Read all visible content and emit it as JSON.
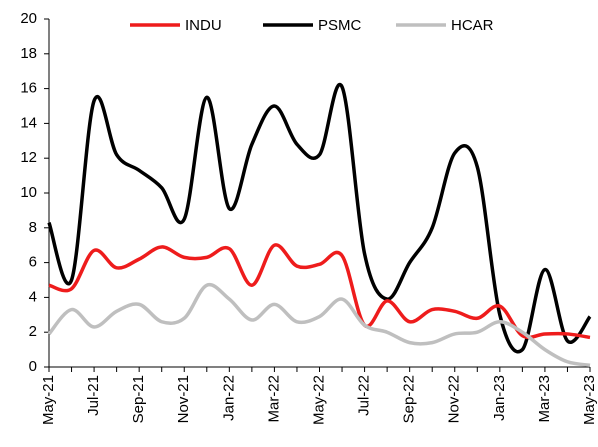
{
  "chart_data": {
    "type": "line",
    "categories": [
      "May-21",
      null,
      "Jul-21",
      null,
      "Sep-21",
      null,
      "Nov-21",
      null,
      "Jan-22",
      null,
      "Mar-22",
      null,
      "May-22",
      null,
      "Jul-22",
      null,
      "Sep-22",
      null,
      "Nov-22",
      null,
      "Jan-23",
      null,
      "Mar-23",
      null,
      "May-23"
    ],
    "series": [
      {
        "name": "INDU",
        "color": "#ee1c1c",
        "values": [
          4.7,
          4.5,
          6.7,
          5.7,
          6.2,
          6.9,
          6.3,
          6.3,
          6.8,
          4.7,
          7.0,
          5.8,
          5.9,
          6.4,
          2.4,
          3.8,
          2.6,
          3.3,
          3.2,
          2.8,
          3.5,
          1.8,
          1.9,
          1.9,
          1.7
        ]
      },
      {
        "name": "PSMC",
        "color": "#000000",
        "values": [
          8.3,
          5.0,
          15.3,
          12.2,
          11.3,
          10.3,
          8.5,
          15.5,
          9.1,
          12.8,
          15.0,
          12.8,
          12.2,
          16.1,
          6.5,
          3.9,
          6.0,
          8.0,
          12.3,
          11.5,
          3.0,
          1.0,
          5.6,
          1.5,
          2.9
        ]
      },
      {
        "name": "HCAR",
        "color": "#bfbfbf",
        "values": [
          1.9,
          3.3,
          2.3,
          3.2,
          3.6,
          2.6,
          2.8,
          4.7,
          3.9,
          2.7,
          3.6,
          2.6,
          2.9,
          3.9,
          2.4,
          2.0,
          1.4,
          1.4,
          1.9,
          2.0,
          2.6,
          2.0,
          1.0,
          0.3,
          0.1
        ]
      }
    ],
    "ylim": [
      0,
      20
    ],
    "yticks": [
      0,
      2,
      4,
      6,
      8,
      10,
      12,
      14,
      16,
      18,
      20
    ],
    "grid": false,
    "legend": "top"
  }
}
